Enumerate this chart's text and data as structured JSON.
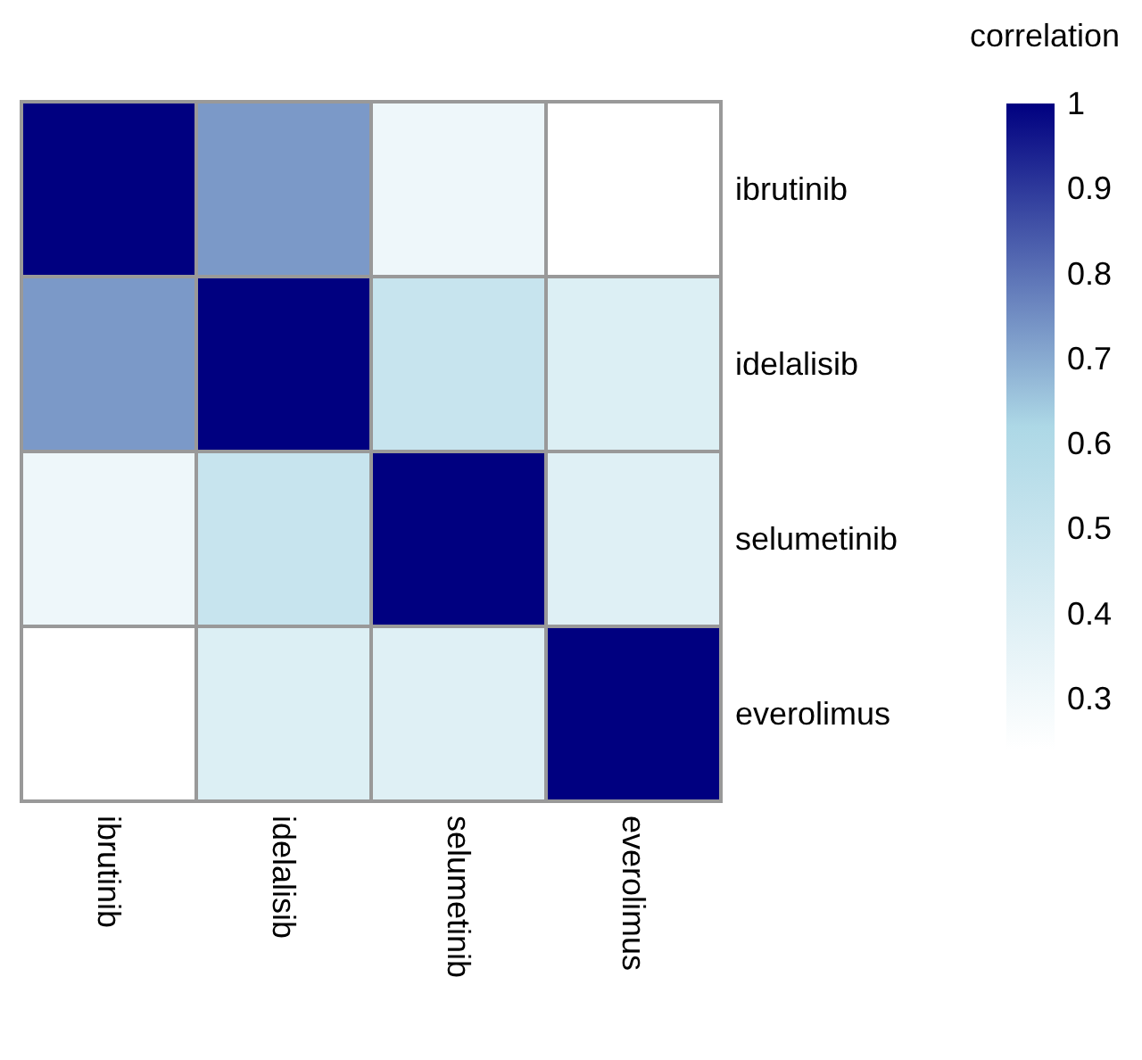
{
  "chart_data": {
    "type": "heatmap",
    "clabel": "correlation",
    "categories": [
      "ibrutinib",
      "idelalisib",
      "selumetinib",
      "everolimus"
    ],
    "y_categories": [
      "ibrutinib",
      "idelalisib",
      "selumetinib",
      "everolimus"
    ],
    "cells": [
      [
        1,
        0.73,
        0.32,
        0.24
      ],
      [
        0.73,
        1,
        0.5,
        0.4
      ],
      [
        0.32,
        0.5,
        1,
        0.39
      ],
      [
        0.24,
        0.4,
        0.39,
        1
      ]
    ],
    "colors": [
      "#ffffff",
      "#add8e6",
      "#000080"
    ],
    "clim": [
      0.24,
      1
    ],
    "cticks": [
      0.3,
      0.4,
      0.5,
      0.6,
      0.7,
      0.8,
      0.9,
      1
    ]
  }
}
